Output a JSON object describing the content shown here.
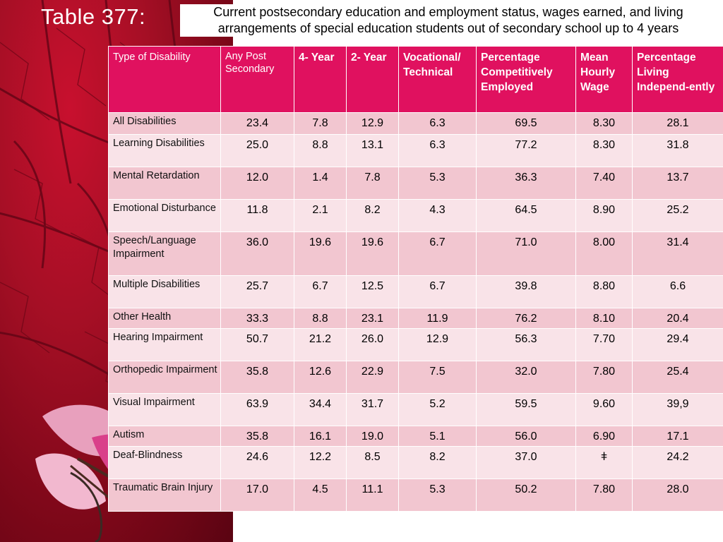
{
  "slide_label": "Table 377:",
  "title": "Current postsecondary education and employment status, wages earned, and living arrangements of special education students out of secondary school up to 4 years",
  "columns": [
    "Type of Disability",
    "Any Post Secondary",
    "4- Year",
    "2- Year",
    "Vocational/ Technical",
    "Percentage Competitively Employed",
    "Mean Hourly Wage",
    "Percentage Living Independ-ently"
  ],
  "rows": [
    [
      "All Disabilities",
      "23.4",
      "7.8",
      "12.9",
      "6.3",
      "69.5",
      "8.30",
      "28.1"
    ],
    [
      "Learning Disabilities",
      "25.0",
      "8.8",
      "13.1",
      "6.3",
      "77.2",
      "8.30",
      "31.8"
    ],
    [
      "Mental Retardation",
      "12.0",
      "1.4",
      "7.8",
      "5.3",
      "36.3",
      "7.40",
      "13.7"
    ],
    [
      "Emotional Disturbance",
      "11.8",
      "2.1",
      "8.2",
      "4.3",
      "64.5",
      "8.90",
      "25.2"
    ],
    [
      "Speech/Language Impairment",
      "36.0",
      "19.6",
      "19.6",
      "6.7",
      "71.0",
      "8.00",
      "31.4"
    ],
    [
      "Multiple Disabilities",
      "25.7",
      "6.7",
      "12.5",
      "6.7",
      "39.8",
      "8.80",
      "6.6"
    ],
    [
      "Other Health",
      "33.3",
      "8.8",
      "23.1",
      "11.9",
      "76.2",
      "8.10",
      "20.4"
    ],
    [
      "Hearing Impairment",
      "50.7",
      "21.2",
      "26.0",
      "12.9",
      "56.3",
      "7.70",
      "29.4"
    ],
    [
      "Orthopedic Impairment",
      "35.8",
      "12.6",
      "22.9",
      "7.5",
      "32.0",
      "7.80",
      "25.4"
    ],
    [
      "Visual Impairment",
      "63.9",
      "34.4",
      "31.7",
      "5.2",
      "59.5",
      "9.60",
      "39,9"
    ],
    [
      "Autism",
      "35.8",
      "16.1",
      "19.0",
      "5.1",
      "56.0",
      "6.90",
      "17.1"
    ],
    [
      "Deaf-Blindness",
      "24.6",
      "12.2",
      "8.5",
      "8.2",
      "37.0",
      "ǂ",
      "24.2"
    ],
    [
      "Traumatic Brain Injury",
      "17.0",
      "4.5",
      "11.1",
      "5.3",
      "50.2",
      "7.80",
      "28.0"
    ]
  ],
  "colors": {
    "header_bg": "#e0115f",
    "row_dark": "#f2c6d0",
    "row_light": "#f9e3e8",
    "leaf": "#a50f25"
  }
}
